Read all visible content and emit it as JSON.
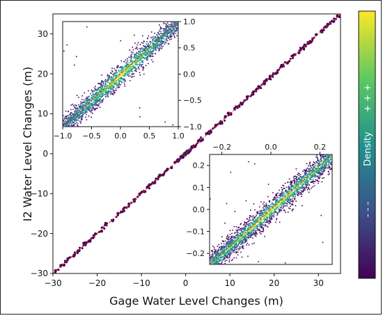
{
  "chart_data": {
    "type": "scatter",
    "xlabel": "Gage Water Level Changes (m)",
    "ylabel": "I2 Water Level Changes (m)",
    "xlim": [
      -30,
      35
    ],
    "ylim": [
      -30,
      35
    ],
    "x_ticks": [
      "−30",
      "−20",
      "−10",
      "0",
      "10",
      "20",
      "30"
    ],
    "y_ticks": [
      "−30",
      "−20",
      "−10",
      "0",
      "10",
      "20",
      "30"
    ],
    "x_tick_values": [
      -30,
      -20,
      -10,
      0,
      10,
      20,
      30
    ],
    "y_tick_values": [
      -30,
      -20,
      -10,
      0,
      10,
      20,
      30
    ],
    "reference_line": "1:1",
    "grid": false,
    "points_main": [
      [
        -30,
        -30.1
      ],
      [
        -29.4,
        -29.3
      ],
      [
        -28.2,
        -28.0
      ],
      [
        -27.5,
        -27.9
      ],
      [
        -26.6,
        -26.3
      ],
      [
        -25.2,
        -25.4
      ],
      [
        -24.1,
        -24.3
      ],
      [
        -22.7,
        -22.3
      ],
      [
        -21.6,
        -21.9
      ],
      [
        -20.4,
        -20.1
      ],
      [
        -19.0,
        -19.4
      ],
      [
        -17.9,
        -17.5
      ],
      [
        -16.5,
        -16.8
      ],
      [
        -15.3,
        -15.0
      ],
      [
        -14.0,
        -14.3
      ],
      [
        -12.8,
        -12.6
      ],
      [
        -11.6,
        -11.9
      ],
      [
        -10.4,
        -10.1
      ],
      [
        -9.2,
        -9.5
      ],
      [
        -8.1,
        -7.8
      ],
      [
        -7.0,
        -7.3
      ],
      [
        -6.0,
        -5.7
      ],
      [
        -5.1,
        -5.3
      ],
      [
        -4.1,
        -3.9
      ],
      [
        -3.2,
        -3.5
      ],
      [
        -2.4,
        -2.2
      ],
      [
        -1.7,
        -1.9
      ],
      [
        -1.1,
        -0.8
      ],
      [
        -0.6,
        -0.9
      ],
      [
        -0.2,
        0.1
      ],
      [
        0.3,
        0.6
      ],
      [
        0.8,
        0.5
      ],
      [
        1.4,
        1.7
      ],
      [
        2.1,
        1.8
      ],
      [
        2.9,
        3.2
      ],
      [
        3.8,
        3.5
      ],
      [
        4.7,
        5.0
      ],
      [
        5.7,
        5.4
      ],
      [
        6.8,
        7.1
      ],
      [
        7.9,
        7.6
      ],
      [
        9.0,
        9.3
      ],
      [
        10.2,
        9.9
      ],
      [
        11.4,
        11.7
      ],
      [
        12.7,
        12.4
      ],
      [
        13.9,
        14.2
      ],
      [
        15.2,
        14.9
      ],
      [
        16.5,
        16.8
      ],
      [
        17.8,
        17.5
      ],
      [
        19.1,
        19.4
      ],
      [
        20.4,
        20.1
      ],
      [
        21.7,
        22.0
      ],
      [
        23.0,
        22.7
      ],
      [
        24.3,
        24.6
      ],
      [
        25.6,
        25.3
      ],
      [
        26.9,
        27.2
      ],
      [
        28.2,
        27.9
      ],
      [
        29.5,
        29.8
      ],
      [
        30.8,
        30.5
      ],
      [
        32.1,
        32.4
      ],
      [
        33.4,
        33.1
      ],
      [
        34.3,
        34.5
      ]
    ],
    "dense_cluster": {
      "x_range": [
        -1.2,
        1.2
      ],
      "y_range": [
        -0.9,
        0.9
      ]
    },
    "density_colorbar": {
      "label": "Density",
      "high_marker": "+ + +",
      "low_marker": "- - -",
      "colors": [
        "#440154",
        "#3b528b",
        "#21918c",
        "#5ec962",
        "#fde725"
      ]
    },
    "insets": [
      {
        "position": "upper-left",
        "xlim": [
          -1.0,
          1.0
        ],
        "ylim": [
          -1.0,
          1.0
        ],
        "x_ticks": [
          "−1.0",
          "−0.5",
          "0.0",
          "0.5",
          "1.0"
        ],
        "y_ticks": [
          "1.0",
          "0.5",
          "0.0",
          "−0.5",
          "−1.0"
        ],
        "x_tick_values": [
          -1.0,
          -0.5,
          0.0,
          0.5,
          1.0
        ],
        "y_tick_values": [
          1.0,
          0.5,
          0.0,
          -0.5,
          -1.0
        ],
        "y_axis_side": "right",
        "spread_sd": 0.09
      },
      {
        "position": "lower-right",
        "xlim": [
          -0.25,
          0.25
        ],
        "ylim": [
          -0.25,
          0.25
        ],
        "x_ticks": [
          "−0.2",
          "0.0",
          "0.2"
        ],
        "y_ticks": [
          "0.2",
          "0.1",
          "0.0",
          "−0.1",
          "−0.2"
        ],
        "x_tick_values": [
          -0.2,
          0.0,
          0.2
        ],
        "y_tick_values": [
          0.2,
          0.1,
          0.0,
          -0.1,
          -0.2
        ],
        "x_axis_side": "top",
        "spread_sd": 0.07
      }
    ]
  }
}
